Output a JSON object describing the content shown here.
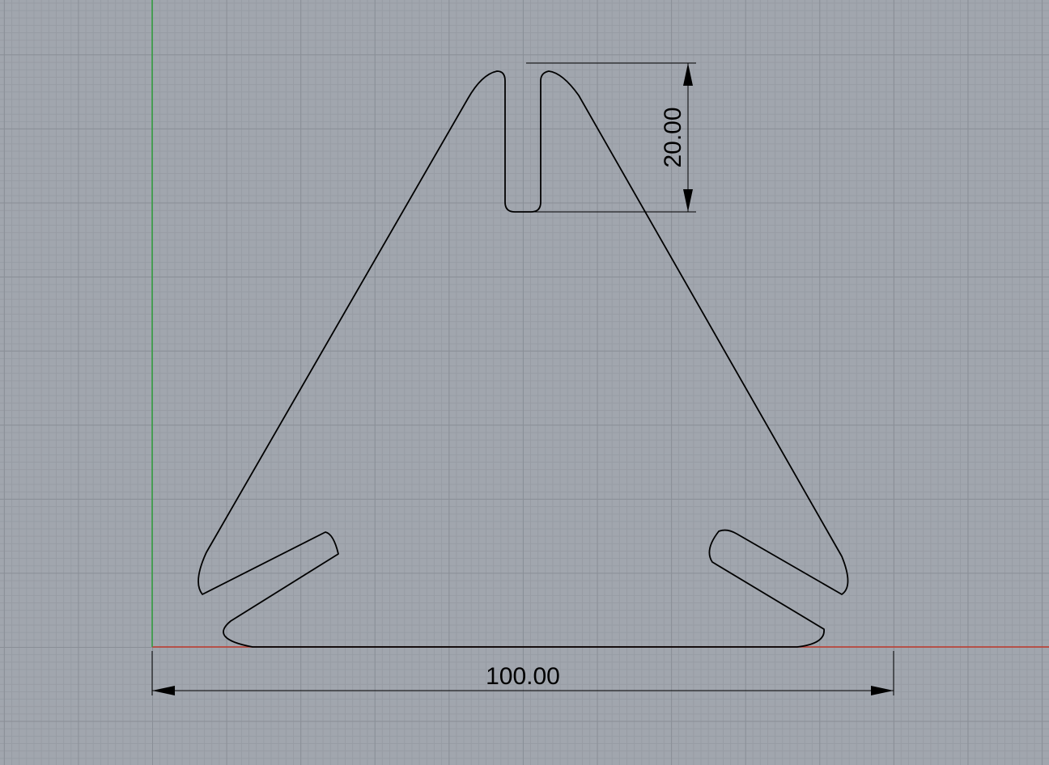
{
  "viewport": {
    "x_axis_color": "#c0392b",
    "y_axis_color": "#2e9e3a",
    "outline_color": "#000000"
  },
  "dimensions": {
    "width_label": "100.00",
    "slot_depth_label": "20.00"
  }
}
